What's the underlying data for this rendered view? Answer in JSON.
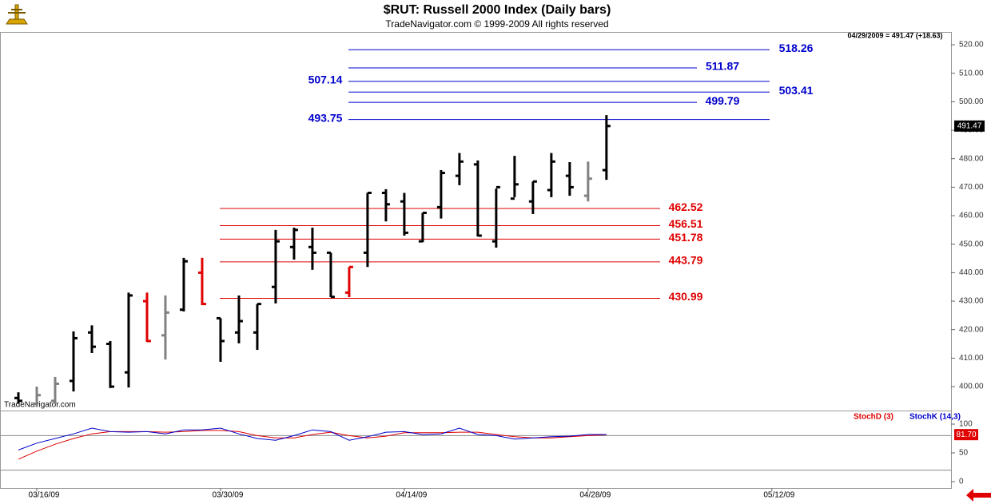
{
  "chart_data": [
    {
      "type": "ohlc",
      "title": "$RUT:  Russell 2000 Index  (Daily bars)",
      "subtitle": "TradeNavigator.com © 1999-2009 All rights reserved",
      "header_note": "04/29/2009 = 491.47 (+18.63)",
      "watermark": "TradeNavigator.com",
      "open": [
        396,
        394,
        395,
        402,
        419,
        415,
        405,
        430,
        418,
        427,
        440,
        424,
        419,
        419,
        435,
        449,
        449,
        447,
        433,
        447,
        468,
        465,
        451,
        463,
        474,
        478,
        451,
        466,
        465,
        469,
        474,
        467,
        476
      ],
      "high": [
        398,
        400,
        403.4,
        419.4,
        421.5,
        416,
        433,
        433,
        432,
        445.2,
        445.2,
        424,
        432,
        429,
        455,
        455.8,
        455.8,
        447,
        442,
        468,
        469.3,
        468,
        461,
        476,
        482,
        479.4,
        469.5,
        481,
        472,
        482,
        478.8,
        479,
        495.3
      ],
      "low": [
        394,
        393,
        394,
        398.3,
        411.8,
        399.5,
        399.7,
        415.7,
        409.5,
        426.4,
        428.6,
        408.7,
        415.2,
        412.9,
        429.2,
        444.6,
        441,
        431.4,
        431.4,
        442,
        458,
        453,
        450.7,
        459,
        470.7,
        452.7,
        448.8,
        466.5,
        460.6,
        466.5,
        467,
        465,
        472.6
      ],
      "close": [
        395,
        397,
        401,
        417,
        414,
        400,
        432,
        416,
        426,
        444,
        429,
        416,
        423,
        429,
        451,
        455,
        447,
        431.5,
        442,
        468,
        464,
        454,
        461,
        475,
        479,
        453,
        470,
        471,
        472,
        479,
        470,
        473,
        491.47
      ],
      "colors": [
        "#000000",
        "#808080",
        "#808080",
        "#000000",
        "#000000",
        "#000000",
        "#000000",
        "#e00000",
        "#808080",
        "#000000",
        "#e00000",
        "#000000",
        "#000000",
        "#000000",
        "#000000",
        "#000000",
        "#000000",
        "#000000",
        "#e00000",
        "#000000",
        "#000000",
        "#000000",
        "#000000",
        "#000000",
        "#000000",
        "#000000",
        "#000000",
        "#000000",
        "#000000",
        "#000000",
        "#000000",
        "#808080",
        "#000000"
      ],
      "last_price": 491.47,
      "levels": [
        {
          "value": 518.26,
          "color": "#0000cc"
        },
        {
          "value": 511.87,
          "color": "#0000cc"
        },
        {
          "value": 507.14,
          "color": "#0000cc"
        },
        {
          "value": 503.41,
          "color": "#0000cc"
        },
        {
          "value": 499.79,
          "color": "#0000cc"
        },
        {
          "value": 493.75,
          "color": "#0000cc"
        },
        {
          "value": 462.52,
          "color": "#e00000"
        },
        {
          "value": 456.51,
          "color": "#e00000"
        },
        {
          "value": 451.78,
          "color": "#e00000"
        },
        {
          "value": 443.79,
          "color": "#e00000"
        },
        {
          "value": 430.99,
          "color": "#e00000"
        }
      ],
      "ylim": [
        391.6,
        524.5
      ],
      "yticks": [
        {
          "value": 400,
          "label": "400.00"
        },
        {
          "value": 410,
          "label": "410.00"
        },
        {
          "value": 420,
          "label": "420.00"
        },
        {
          "value": 430,
          "label": "430.00"
        },
        {
          "value": 440,
          "label": "440.00"
        },
        {
          "value": 450,
          "label": "450.00"
        },
        {
          "value": 460,
          "label": "460.00"
        },
        {
          "value": 470,
          "label": "470.00"
        },
        {
          "value": 480,
          "label": "480.00"
        },
        {
          "value": 490,
          "label": "490.00"
        },
        {
          "value": 500,
          "label": "500.00"
        },
        {
          "value": 510,
          "label": "510.00"
        },
        {
          "value": 520,
          "label": "520.00"
        }
      ]
    },
    {
      "type": "line",
      "series": [
        {
          "name": "StochD (3)",
          "color": "#e00000",
          "values": [
            39,
            53,
            65,
            75,
            83,
            87,
            87,
            87,
            86,
            87,
            89,
            89,
            87,
            80,
            76,
            76,
            82,
            86,
            80,
            76,
            79,
            85,
            85,
            85,
            86,
            86,
            82,
            78,
            76,
            76,
            78,
            80,
            81.7
          ]
        },
        {
          "name": "StochK (14,3)",
          "color": "#0000cc",
          "values": [
            55,
            67,
            75,
            83,
            93,
            87,
            86,
            87,
            83,
            90,
            90,
            93,
            83,
            75,
            72,
            80,
            90,
            87,
            72,
            78,
            86,
            87,
            82,
            83,
            93,
            82,
            80,
            74,
            76,
            78,
            79,
            82,
            82
          ]
        }
      ],
      "last_value": {
        "value": 81.7,
        "label": "81.70"
      },
      "hlines": [
        20,
        80
      ],
      "ylim": [
        -11.1,
        122.2
      ],
      "yticks": [
        0,
        50,
        100
      ],
      "xlim": [
        -1,
        50.75
      ],
      "xticks": [
        {
          "value": 1,
          "label": "03/16/09"
        },
        {
          "value": 11,
          "label": "03/30/09"
        },
        {
          "value": 21,
          "label": "04/14/09"
        },
        {
          "value": 31,
          "label": "04/28/09"
        },
        {
          "value": 41,
          "label": "05/12/09"
        }
      ]
    }
  ]
}
